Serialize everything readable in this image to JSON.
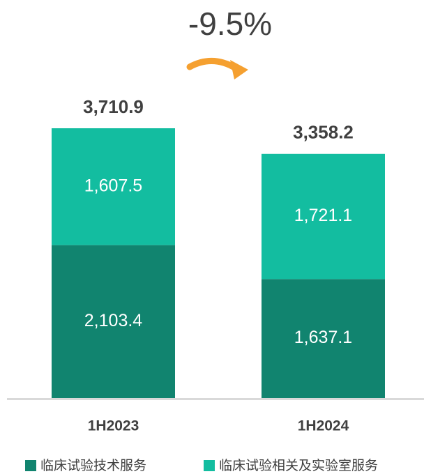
{
  "chart_data": {
    "type": "stacked_bar",
    "annotation": "-9.5%",
    "categories": [
      "1H2023",
      "1H2024"
    ],
    "series": [
      {
        "name": "临床试验技术服务",
        "color": "#11846f",
        "values": [
          2103.4,
          1637.1
        ],
        "value_labels": [
          "2,103.4",
          "1,637.1"
        ]
      },
      {
        "name": "临床试验相关及实验室服务",
        "color": "#13bda0",
        "values": [
          1607.5,
          1721.1
        ],
        "value_labels": [
          "1,607.5",
          "1,721.1"
        ]
      }
    ],
    "totals": {
      "values": [
        3710.9,
        3358.2
      ],
      "value_labels": [
        "3,710.9",
        "3,358.2"
      ]
    }
  }
}
